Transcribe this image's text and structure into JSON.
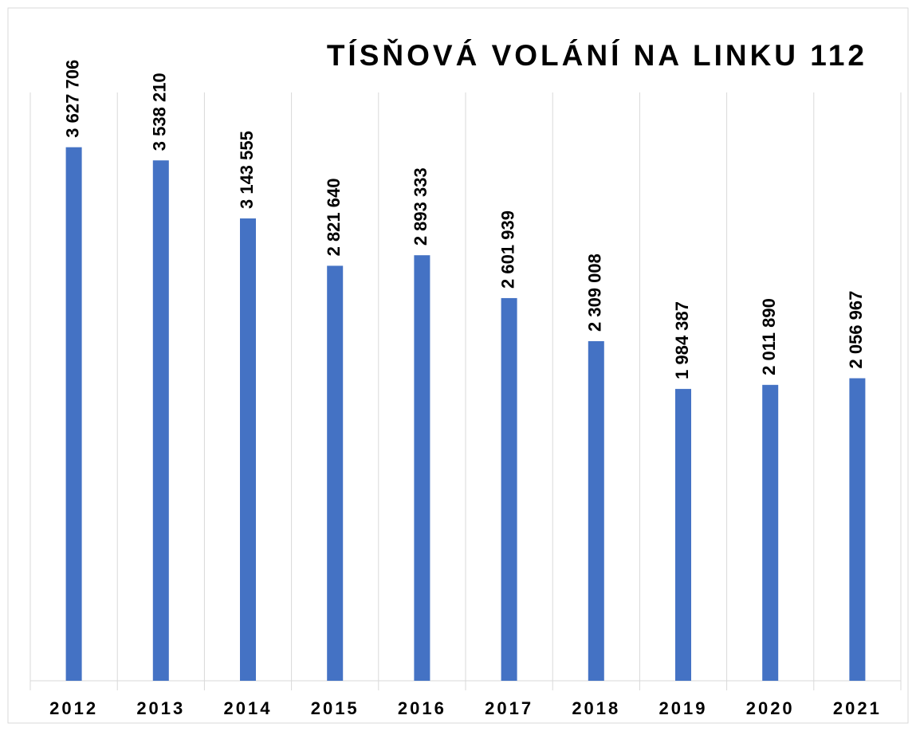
{
  "chart_data": {
    "type": "bar",
    "title": "TÍSŇOVÁ VOLÁNÍ NA LINKU 112",
    "categories": [
      "2012",
      "2013",
      "2014",
      "2015",
      "2016",
      "2017",
      "2018",
      "2019",
      "2020",
      "2021"
    ],
    "values": [
      3627706,
      3538210,
      3143555,
      2821640,
      2893333,
      2601939,
      2309008,
      1984387,
      2011890,
      2056967
    ],
    "value_labels": [
      "3 627 706",
      "3 538 210",
      "3 143 555",
      "2 821 640",
      "2 893 333",
      "2 601 939",
      "2 309 008",
      "1 984 387",
      "2 011 890",
      "2 056 967"
    ],
    "color": "#4472c4",
    "ylim": [
      0,
      4000000
    ]
  }
}
